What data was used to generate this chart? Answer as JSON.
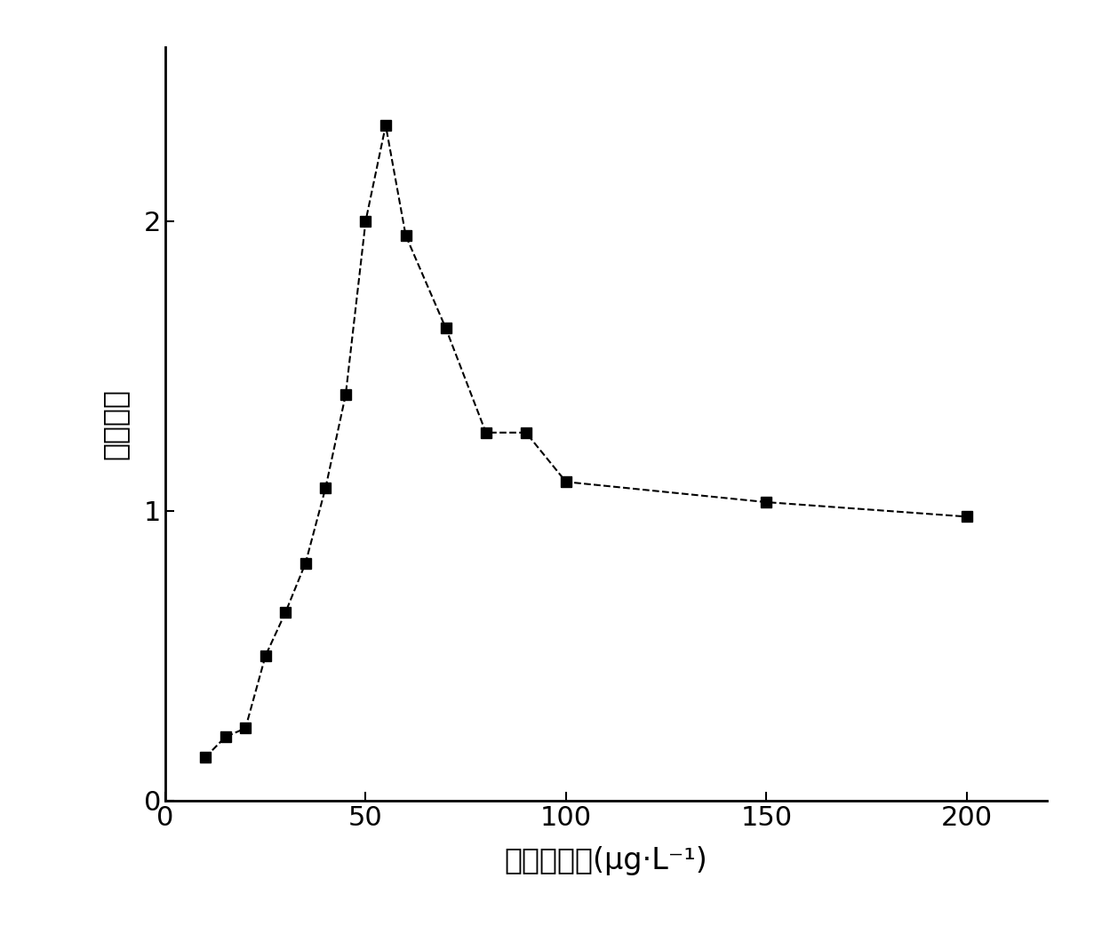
{
  "x": [
    10,
    15,
    20,
    25,
    30,
    35,
    40,
    45,
    50,
    55,
    60,
    70,
    80,
    90,
    100,
    150,
    200
  ],
  "y": [
    0.15,
    0.22,
    0.25,
    0.5,
    0.65,
    0.82,
    1.08,
    1.4,
    2.0,
    2.33,
    1.95,
    1.63,
    1.27,
    1.27,
    1.1,
    1.03,
    0.98
  ],
  "xlabel": "四环素浓度(μg·L⁻¹)",
  "ylabel": "相对强度",
  "xlim": [
    0,
    220
  ],
  "ylim": [
    0,
    2.6
  ],
  "yticks": [
    0,
    1,
    2
  ],
  "xticks": [
    0,
    50,
    100,
    150,
    200
  ],
  "marker": "s",
  "marker_color": "black",
  "line_color": "black",
  "line_style": "--",
  "marker_size": 9,
  "line_width": 1.5,
  "xlabel_fontsize": 24,
  "ylabel_fontsize": 24,
  "tick_fontsize": 22,
  "background_color": "#ffffff"
}
